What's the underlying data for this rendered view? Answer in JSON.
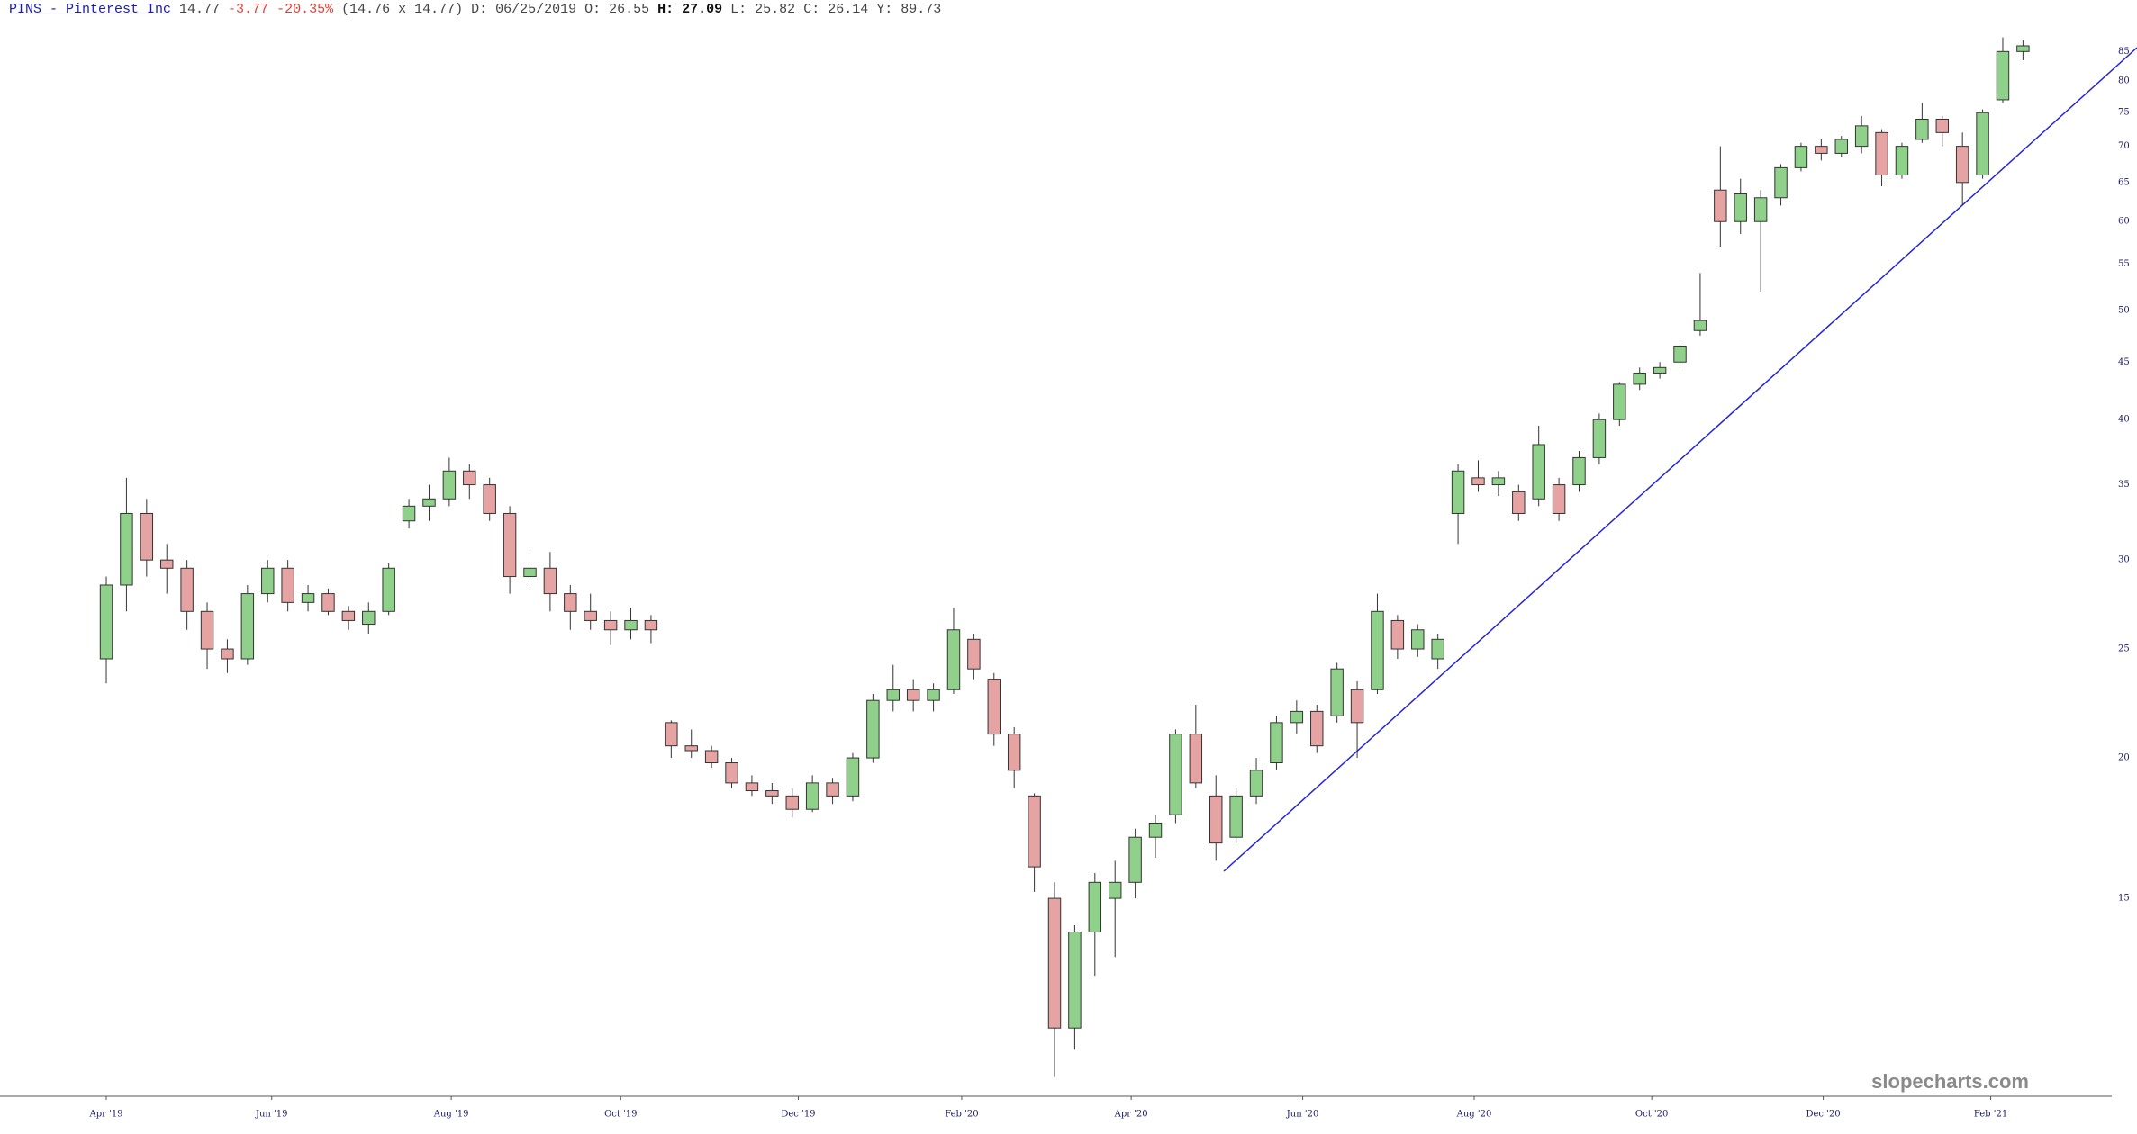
{
  "chart_data": {
    "type": "candlestick",
    "header": {
      "symbol": "PINS - Pinterest Inc",
      "last": 14.77,
      "change": -3.77,
      "change_pct": "-20.35%",
      "bid_ask": "(14.76 x 14.77)",
      "date": "D: 06/25/2019",
      "open": "O: 26.55",
      "high": "H: 27.09",
      "low": "L: 25.82",
      "close": "C: 26.14",
      "y": "Y: 89.73"
    },
    "watermark": "slopecharts.com",
    "log_y": true,
    "grid": false,
    "up_color": "#8fd18a",
    "down_color": "#e6a3a3",
    "outline_color": "#333333",
    "trendline_color": "#2424d8",
    "xlim": [
      -5,
      99
    ],
    "ylim": [
      10,
      95
    ],
    "yticks": [
      15,
      20,
      25,
      30,
      35,
      40,
      45,
      50,
      55,
      60,
      65,
      70,
      75,
      80,
      85
    ],
    "xticks": [
      {
        "value": 0,
        "label": "Apr '19"
      },
      {
        "value": 8.2,
        "label": "Jun '19"
      },
      {
        "value": 17.1,
        "label": "Aug '19"
      },
      {
        "value": 25.5,
        "label": "Oct '19"
      },
      {
        "value": 34.3,
        "label": "Dec '19"
      },
      {
        "value": 42.4,
        "label": "Feb '20"
      },
      {
        "value": 50.8,
        "label": "Apr '20"
      },
      {
        "value": 59.3,
        "label": "Jun '20"
      },
      {
        "value": 67.8,
        "label": "Aug '20"
      },
      {
        "value": 76.6,
        "label": "Oct '20"
      },
      {
        "value": 85.1,
        "label": "Dec '20"
      },
      {
        "value": 93.4,
        "label": "Feb '21"
      }
    ],
    "x": [
      0,
      1,
      2,
      3,
      4,
      5,
      6,
      7,
      8,
      9,
      10,
      11,
      12,
      13,
      14,
      15,
      16,
      17,
      18,
      19,
      20,
      21,
      22,
      23,
      24,
      25,
      26,
      27,
      28,
      29,
      30,
      31,
      32,
      33,
      34,
      35,
      36,
      37,
      38,
      39,
      40,
      41,
      42,
      43,
      44,
      45,
      46,
      47,
      48,
      49,
      50,
      51,
      52,
      53,
      54,
      55,
      56,
      57,
      58,
      59,
      60,
      61,
      62,
      63,
      64,
      65,
      66,
      67,
      68,
      69,
      70,
      71,
      72,
      73,
      74,
      75,
      76,
      77,
      78,
      79,
      80,
      81,
      82,
      83,
      84,
      85,
      86,
      87,
      88,
      89,
      90,
      91,
      92,
      93,
      94,
      95
    ],
    "open": [
      24.5,
      28.5,
      33,
      30,
      29.5,
      27,
      25,
      24.5,
      28,
      29.5,
      27.5,
      28,
      27,
      26.3,
      27,
      32.5,
      33.5,
      34,
      36,
      35,
      33,
      29,
      29.5,
      28,
      27,
      26.5,
      26,
      26.5,
      21.5,
      20.5,
      20.3,
      19.8,
      19,
      18.7,
      18.5,
      18,
      19,
      18.5,
      20,
      22.5,
      23,
      22.5,
      23,
      25.5,
      23.5,
      21,
      18.5,
      15,
      11.5,
      14,
      15,
      15.5,
      17,
      17.8,
      21,
      18.5,
      17,
      18.5,
      19.8,
      21.5,
      22,
      21.8,
      23,
      23,
      26.5,
      25,
      24.5,
      33,
      35.5,
      35,
      34.5,
      34,
      35,
      35,
      37,
      40,
      43,
      44,
      45,
      48,
      64,
      60,
      60,
      63,
      67,
      70,
      69,
      70,
      72,
      66,
      71,
      74,
      70,
      66,
      77,
      85
    ],
    "high": [
      29,
      35.5,
      34,
      31,
      30,
      27.5,
      25.5,
      28.5,
      30,
      30,
      28.5,
      28.3,
      27.3,
      27.5,
      29.8,
      34,
      35,
      37,
      36.5,
      35.5,
      33.5,
      30.5,
      30.5,
      28.5,
      28,
      27,
      27.2,
      26.8,
      21.6,
      21.2,
      20.5,
      20,
      19.3,
      19,
      18.8,
      19.3,
      19.2,
      20.2,
      22.8,
      24.2,
      23.5,
      23.3,
      27.2,
      25.8,
      23.8,
      21.3,
      18.6,
      15.5,
      14.2,
      15.8,
      16.2,
      17.3,
      17.8,
      21.2,
      22.3,
      19.3,
      18.8,
      20,
      21.8,
      22.5,
      22.3,
      24.3,
      23.4,
      28,
      26.8,
      26.3,
      25.8,
      36.5,
      36.8,
      36,
      35,
      39.5,
      35.5,
      37.5,
      40.5,
      43.2,
      44.5,
      45,
      46.8,
      54,
      70,
      65.5,
      64,
      67.5,
      70.5,
      71,
      71.5,
      74.5,
      72.5,
      70.5,
      76.5,
      74.5,
      72,
      75.5,
      87.5,
      87
    ],
    "low": [
      23.3,
      27,
      29,
      28,
      26,
      24,
      23.8,
      24.2,
      27.5,
      27,
      27,
      26.8,
      26,
      25.8,
      26.8,
      32,
      32.5,
      33.5,
      34,
      32.5,
      28,
      28.5,
      27,
      26,
      26,
      25.2,
      25.5,
      25.3,
      20,
      20,
      19.6,
      18.8,
      18.5,
      18.2,
      17.7,
      17.9,
      18.2,
      18.3,
      19.8,
      22,
      22,
      22,
      22.8,
      23.5,
      20.5,
      18.8,
      15.2,
      10.4,
      11,
      12.8,
      13.3,
      15,
      16.3,
      17.5,
      18.8,
      16.2,
      16.8,
      18.2,
      19.5,
      21,
      20.2,
      21.5,
      20,
      22.8,
      24.5,
      24.6,
      24,
      31,
      34.5,
      34.2,
      32.5,
      33.5,
      32.5,
      34.5,
      36.5,
      39.5,
      42.5,
      43.5,
      44.5,
      47.5,
      57,
      58.5,
      52,
      62,
      66.5,
      68,
      68.5,
      69,
      64.5,
      65.5,
      70.5,
      70,
      62,
      65.5,
      76.5,
      83.5
    ],
    "close": [
      28.5,
      33,
      30,
      29.5,
      27,
      25,
      24.5,
      28,
      29.5,
      27.5,
      28,
      27,
      26.5,
      27,
      29.5,
      33.5,
      34,
      36,
      35,
      33,
      29,
      29.5,
      28,
      27,
      26.5,
      26,
      26.5,
      26,
      20.5,
      20.3,
      19.8,
      19,
      18.7,
      18.5,
      18,
      19,
      18.5,
      20,
      22.5,
      23,
      22.5,
      23,
      26,
      24,
      21,
      19.5,
      16,
      11.5,
      14,
      15.5,
      15.5,
      17,
      17.5,
      21,
      19,
      16.8,
      18.5,
      19.5,
      21.5,
      22,
      20.5,
      24,
      21.5,
      27,
      25,
      26,
      25.5,
      36,
      35,
      35.5,
      33,
      38,
      33,
      37,
      40,
      43,
      44,
      44.5,
      46.5,
      49,
      60,
      63.5,
      63,
      67,
      70,
      69,
      71,
      73,
      66,
      70,
      74,
      72,
      65,
      75,
      85,
      86
    ]
  }
}
